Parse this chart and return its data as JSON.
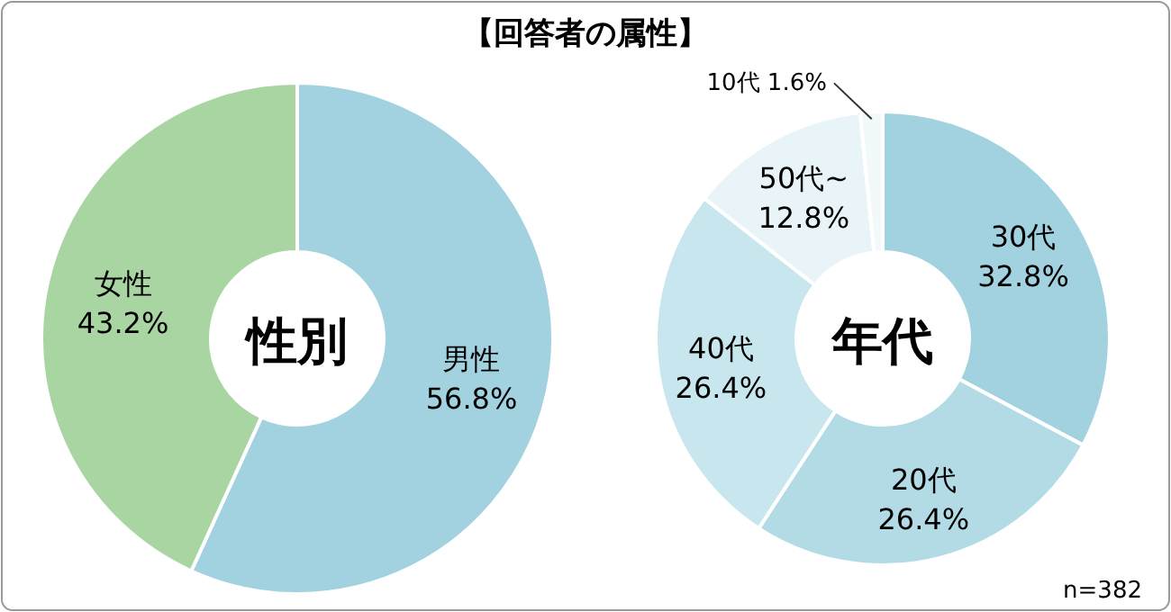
{
  "chart_data": [
    {
      "type": "donut",
      "title": "性別",
      "annotations": [
        "【回答者の属性】"
      ],
      "categories": [
        "男性",
        "女性"
      ],
      "values": [
        56.8,
        43.2
      ],
      "value_labels": [
        "56.8%",
        "43.2%"
      ],
      "colors": [
        "#a2d2df",
        "#a8d5a2"
      ]
    },
    {
      "type": "donut",
      "title": "年代",
      "annotations": [
        "n=382"
      ],
      "categories": [
        "30代",
        "20代",
        "40代",
        "50代~",
        "10代"
      ],
      "values": [
        32.8,
        26.4,
        26.4,
        12.8,
        1.6
      ],
      "value_labels": [
        "32.8%",
        "26.4%",
        "26.4%",
        "12.8%",
        "1.6%"
      ],
      "colors": [
        "#a2d2df",
        "#b3dbe6",
        "#c8e6ee",
        "#e8f4f7",
        "#f2f9fb"
      ]
    }
  ]
}
